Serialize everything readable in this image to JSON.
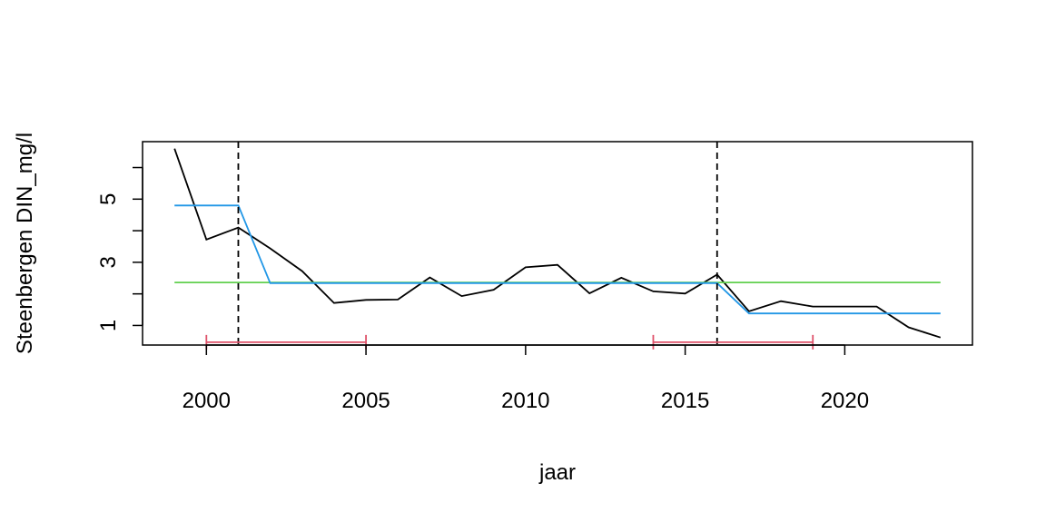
{
  "chart_data": {
    "type": "line",
    "xlabel": "jaar",
    "ylabel": "Steenbergen DIN_mg/l",
    "xlim": [
      1998,
      2024
    ],
    "ylim": [
      0.38,
      6.82
    ],
    "x_ticks": [
      2000,
      2005,
      2010,
      2015,
      2020
    ],
    "x_tick_labels": [
      "2000",
      "2005",
      "2010",
      "2015",
      "2020"
    ],
    "y_ticks": [
      1,
      2,
      3,
      4,
      5,
      6
    ],
    "y_tick_labels": [
      "1",
      "",
      "3",
      "",
      "5",
      ""
    ],
    "grid": false,
    "series": [
      {
        "color": "#000000",
        "x": [
          1999,
          2000,
          2001,
          2002,
          2003,
          2004,
          2005,
          2006,
          2007,
          2008,
          2009,
          2010,
          2011,
          2012,
          2013,
          2014,
          2015,
          2016,
          2017,
          2018,
          2019,
          2020,
          2021,
          2022,
          2023
        ],
        "values": [
          6.6,
          3.72,
          4.1,
          3.44,
          2.72,
          1.71,
          1.81,
          1.82,
          2.52,
          1.93,
          2.13,
          2.84,
          2.92,
          2.02,
          2.51,
          2.08,
          2.01,
          2.61,
          1.45,
          1.77,
          1.6,
          1.6,
          1.6,
          0.94,
          0.62
        ]
      },
      {
        "color": "#61D04F",
        "x": [
          1999,
          2023
        ],
        "values": [
          2.36,
          2.36
        ]
      },
      {
        "color": "#2297E6",
        "x": [
          1999,
          2001,
          2002,
          2016,
          2017,
          2023
        ],
        "values": [
          4.8,
          4.8,
          2.34,
          2.34,
          1.38,
          1.38
        ]
      }
    ],
    "change_points": [
      2001,
      2016
    ],
    "intervals": {
      "color": "#DF536B",
      "y": 0.47,
      "ranges": [
        [
          2000,
          2005
        ],
        [
          2014,
          2019
        ]
      ]
    }
  }
}
